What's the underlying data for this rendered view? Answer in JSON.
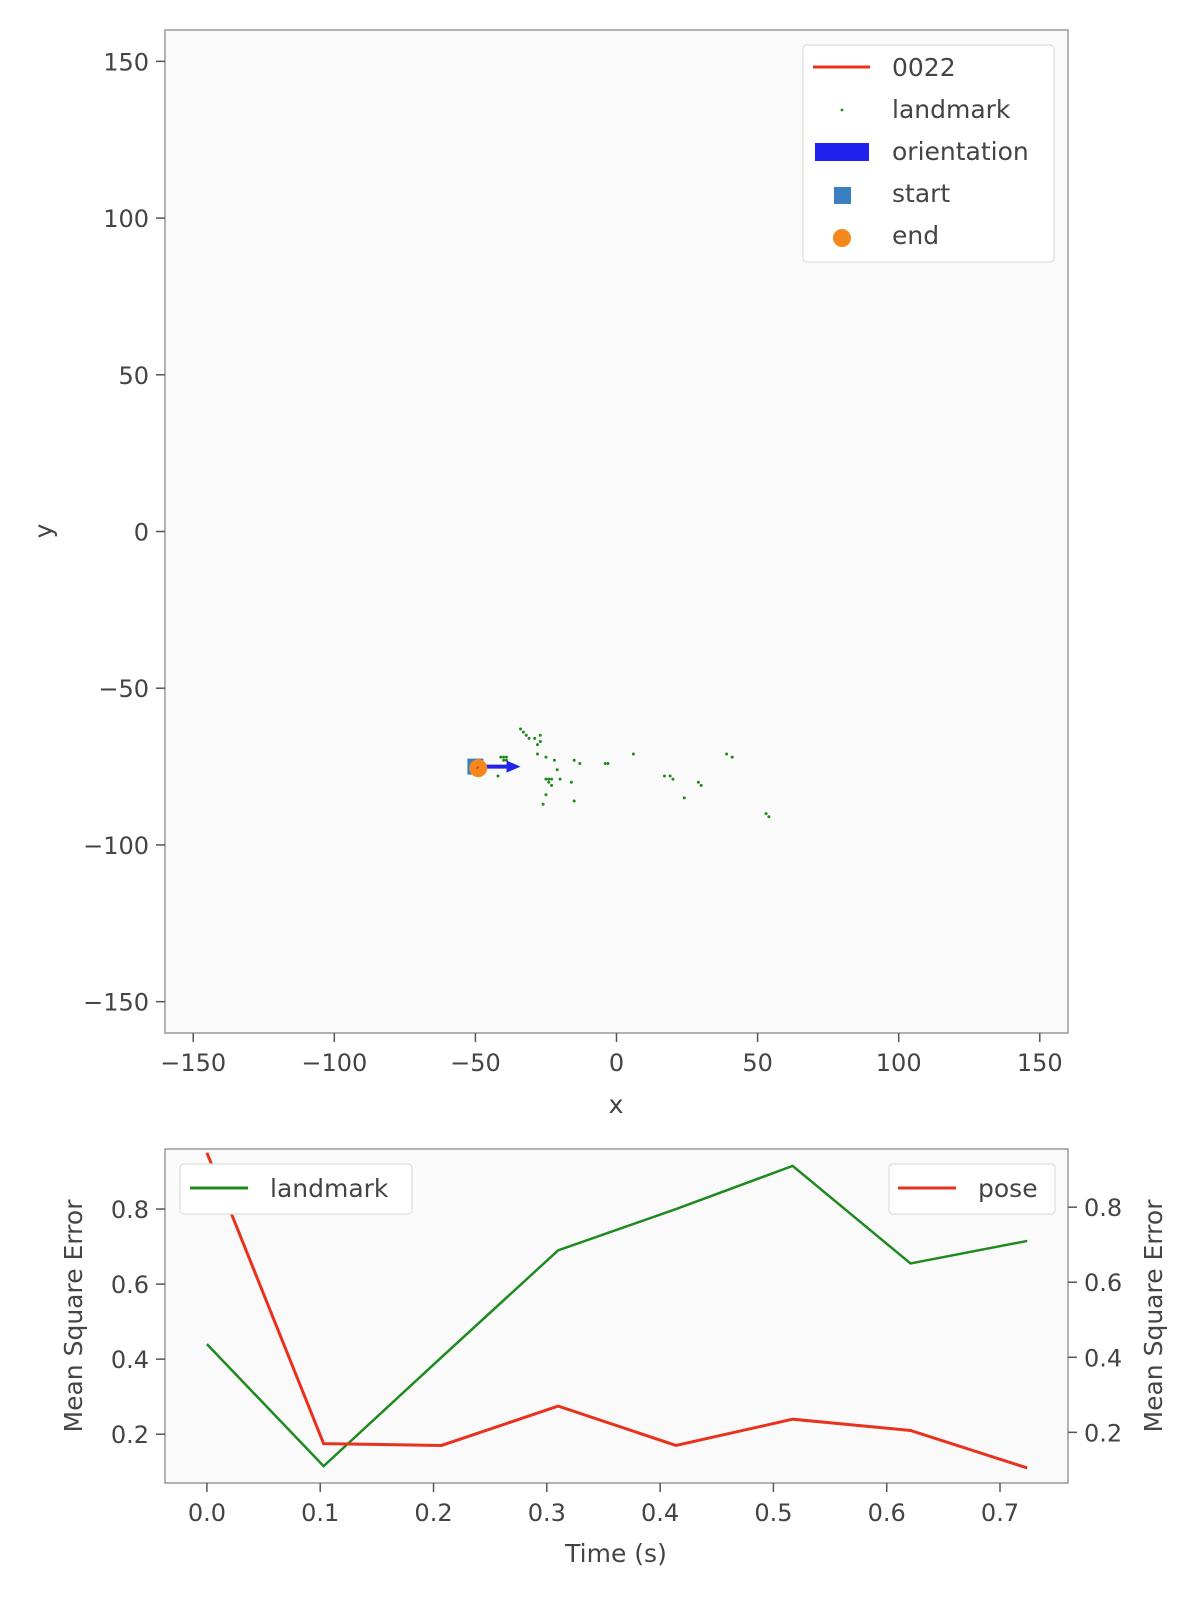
{
  "chart_data": [
    {
      "type": "scatter",
      "xlabel": "x",
      "ylabel": "y",
      "xlim": [
        -160,
        160
      ],
      "ylim": [
        -160,
        160
      ],
      "xticks": [
        -150,
        -100,
        -50,
        0,
        50,
        100,
        150
      ],
      "yticks": [
        -150,
        -100,
        -50,
        0,
        50,
        100,
        150
      ],
      "tick_labels_x": [
        "−150",
        "−100",
        "−50",
        "0",
        "50",
        "100",
        "150"
      ],
      "tick_labels_y": [
        "−150",
        "−100",
        "−50",
        "0",
        "50",
        "100",
        "150"
      ],
      "grid": false,
      "legend_position": "top-right",
      "legend": [
        "0022",
        "landmark",
        "orientation",
        "start",
        "end"
      ],
      "series": [
        {
          "name": "0022",
          "type": "line",
          "color": "#e8321e",
          "x": [
            -49.5,
            -49.0
          ],
          "y": [
            -75.2,
            -75.5
          ]
        },
        {
          "name": "landmark",
          "type": "scatter",
          "color": "#1f8a1f",
          "points": [
            [
              -34,
              -63
            ],
            [
              -33,
              -64
            ],
            [
              -32,
              -65
            ],
            [
              -31,
              -66
            ],
            [
              -29,
              -66
            ],
            [
              -27,
              -65
            ],
            [
              -27,
              -67
            ],
            [
              -28,
              -68
            ],
            [
              -40,
              -72
            ],
            [
              -39,
              -72
            ],
            [
              -40,
              -73
            ],
            [
              -39,
              -73
            ],
            [
              -41,
              -72
            ],
            [
              -28,
              -71
            ],
            [
              -25,
              -72
            ],
            [
              -22,
              -73
            ],
            [
              -15,
              -73
            ],
            [
              -13,
              -74
            ],
            [
              -25,
              -79
            ],
            [
              -24,
              -79
            ],
            [
              -23,
              -79
            ],
            [
              -24,
              -80
            ],
            [
              -23,
              -81
            ],
            [
              -25,
              -84
            ],
            [
              -26,
              -87
            ],
            [
              -21,
              -76
            ],
            [
              -20,
              -79
            ],
            [
              -16,
              -80
            ],
            [
              -15,
              -86
            ],
            [
              -4,
              -74
            ],
            [
              -3,
              -74
            ],
            [
              6,
              -71
            ],
            [
              17,
              -78
            ],
            [
              19,
              -78
            ],
            [
              20,
              -79
            ],
            [
              24,
              -85
            ],
            [
              29,
              -80
            ],
            [
              30,
              -81
            ],
            [
              39,
              -71
            ],
            [
              41,
              -72
            ],
            [
              53,
              -90
            ],
            [
              54,
              -91
            ],
            [
              -42,
              -78
            ],
            [
              -38,
              -76
            ]
          ]
        },
        {
          "name": "orientation",
          "type": "quiver",
          "color": "#2222ee",
          "x": -49,
          "y": -75,
          "dx": 15,
          "dy": 0
        },
        {
          "name": "start",
          "type": "marker",
          "marker": "square",
          "color": "#3a7fc1",
          "x": -50,
          "y": -75
        },
        {
          "name": "end",
          "type": "marker",
          "marker": "circle",
          "color": "#f5881c",
          "x": -49,
          "y": -75.5
        }
      ]
    },
    {
      "type": "line",
      "xlabel": "Time (s)",
      "ylabel": "Mean Square Error",
      "ylabel_right": "Mean Square Error",
      "xlim": [
        -0.037,
        0.76
      ],
      "xticks": [
        0.0,
        0.1,
        0.2,
        0.3,
        0.4,
        0.5,
        0.6,
        0.7
      ],
      "tick_labels_x": [
        "0.0",
        "0.1",
        "0.2",
        "0.3",
        "0.4",
        "0.5",
        "0.6",
        "0.7"
      ],
      "x": [
        0.0,
        0.103,
        0.207,
        0.31,
        0.414,
        0.517,
        0.621,
        0.724
      ],
      "legend_left_position": "top-left",
      "legend_right_position": "top-right",
      "series": [
        {
          "name": "landmark",
          "axis": "left",
          "color": "#1f8a1f",
          "values": [
            0.44,
            0.115,
            0.405,
            0.69,
            0.8,
            0.915,
            0.655,
            0.715
          ],
          "ylim": [
            0.07,
            0.96
          ],
          "yticks": [
            0.2,
            0.4,
            0.6,
            0.8
          ],
          "tick_labels_y": [
            "0.2",
            "0.4",
            "0.6",
            "0.8"
          ]
        },
        {
          "name": "pose",
          "axis": "right",
          "color": "#e8321e",
          "values": [
            0.945,
            0.17,
            0.165,
            0.27,
            0.165,
            0.235,
            0.205,
            0.105
          ],
          "ylim": [
            0.065,
            0.955
          ],
          "yticks": [
            0.2,
            0.4,
            0.6,
            0.8
          ],
          "tick_labels_y": [
            "0.2",
            "0.4",
            "0.6",
            "0.8"
          ]
        }
      ]
    }
  ]
}
